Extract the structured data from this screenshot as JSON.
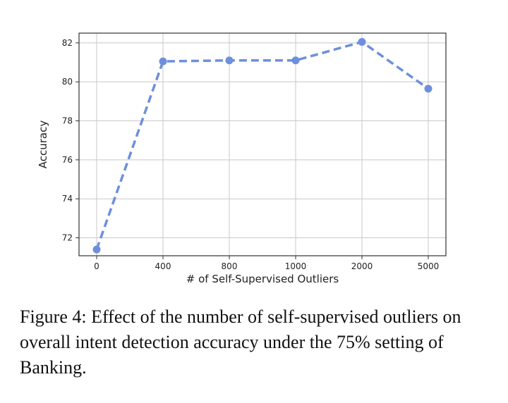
{
  "chart_data": {
    "type": "line",
    "categories": [
      "0",
      "400",
      "800",
      "1000",
      "2000",
      "5000"
    ],
    "values": [
      71.4,
      81.05,
      81.1,
      81.1,
      82.05,
      79.65
    ],
    "xlabel": "# of Self-Supervised Outliers",
    "ylabel": "Accuracy",
    "ylim": [
      71.08,
      82.5
    ],
    "yticks": [
      72,
      74,
      76,
      78,
      80,
      82
    ],
    "grid": true,
    "line_style": "dashed",
    "marker": "circle",
    "color": "#6e8fdc"
  },
  "caption": "Figure 4: Effect of the number of self-supervised outliers on overall intent detection accuracy under the 75% setting of Banking."
}
